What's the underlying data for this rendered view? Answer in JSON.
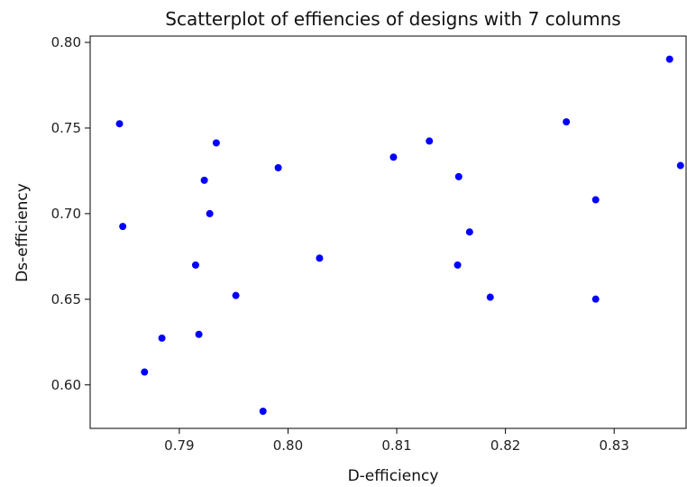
{
  "chart_data": {
    "type": "scatter",
    "title": "Scatterplot of effiencies of designs with 7 columns",
    "xlabel": "D-efficiency",
    "ylabel": "Ds-efficiency",
    "xlim": [
      0.7818,
      0.8367
    ],
    "ylim": [
      0.5746,
      0.8037
    ],
    "xticks": [
      0.79,
      0.8,
      0.81,
      0.82,
      0.83
    ],
    "xtick_labels": [
      "0.79",
      "0.80",
      "0.81",
      "0.82",
      "0.83"
    ],
    "yticks": [
      0.6,
      0.65,
      0.7,
      0.75,
      0.8
    ],
    "ytick_labels": [
      "0.60",
      "0.65",
      "0.70",
      "0.75",
      "0.80"
    ],
    "grid": false,
    "point_color": "#0000ff",
    "points": [
      {
        "x": 0.7845,
        "y": 0.7525
      },
      {
        "x": 0.7848,
        "y": 0.6925
      },
      {
        "x": 0.7868,
        "y": 0.6075
      },
      {
        "x": 0.7884,
        "y": 0.6273
      },
      {
        "x": 0.7915,
        "y": 0.67
      },
      {
        "x": 0.7918,
        "y": 0.6295
      },
      {
        "x": 0.7923,
        "y": 0.7195
      },
      {
        "x": 0.7928,
        "y": 0.7
      },
      {
        "x": 0.7934,
        "y": 0.7413
      },
      {
        "x": 0.7952,
        "y": 0.6522
      },
      {
        "x": 0.7977,
        "y": 0.5846
      },
      {
        "x": 0.7991,
        "y": 0.7268
      },
      {
        "x": 0.8029,
        "y": 0.674
      },
      {
        "x": 0.8097,
        "y": 0.733
      },
      {
        "x": 0.813,
        "y": 0.7424
      },
      {
        "x": 0.8156,
        "y": 0.67
      },
      {
        "x": 0.8157,
        "y": 0.7216
      },
      {
        "x": 0.8167,
        "y": 0.6893
      },
      {
        "x": 0.8186,
        "y": 0.6512
      },
      {
        "x": 0.8256,
        "y": 0.7536
      },
      {
        "x": 0.8283,
        "y": 0.7081
      },
      {
        "x": 0.8283,
        "y": 0.6501
      },
      {
        "x": 0.8351,
        "y": 0.7902
      },
      {
        "x": 0.8361,
        "y": 0.7281
      }
    ]
  }
}
